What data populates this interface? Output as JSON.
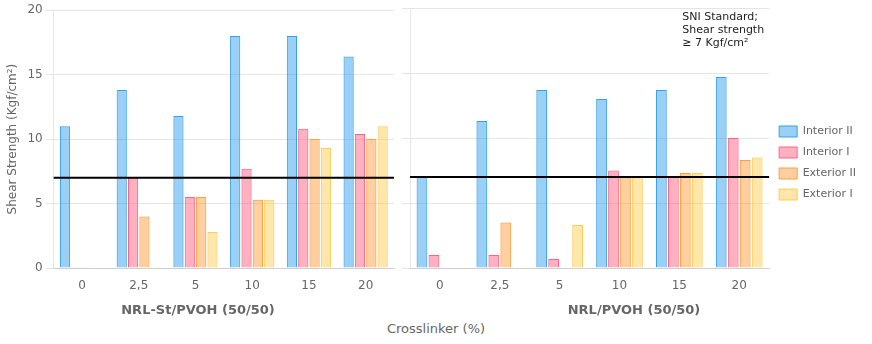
{
  "chart_data": [
    {
      "type": "bar",
      "title": "NRL-St/PVOH (50/50)",
      "xlabel": "Crosslinker (%)",
      "ylabel": "Shear Strength (Kgf/cm²)",
      "categories": [
        "0",
        "2,5",
        "5",
        "10",
        "15",
        "20"
      ],
      "series": [
        {
          "name": "Interior II",
          "values": [
            11.0,
            13.8,
            11.8,
            18.0,
            18.0,
            16.4
          ]
        },
        {
          "name": "Interior I",
          "values": [
            0.05,
            7.0,
            5.5,
            7.7,
            10.8,
            10.4
          ]
        },
        {
          "name": "Exterior II",
          "values": [
            0.05,
            4.0,
            5.5,
            5.3,
            10.0,
            10.0
          ]
        },
        {
          "name": "Exterior I",
          "values": [
            0.0,
            0.05,
            2.8,
            5.3,
            9.3,
            11.0
          ]
        }
      ],
      "hline": 7,
      "ylim": [
        0,
        20
      ],
      "yticks": [
        0,
        5,
        10,
        15,
        20
      ],
      "grid": true
    },
    {
      "type": "bar",
      "title": "NRL/PVOH (50/50)",
      "categories": [
        "0",
        "2,5",
        "5",
        "10",
        "15",
        "20"
      ],
      "series": [
        {
          "name": "Interior II",
          "values": [
            7.0,
            11.3,
            13.7,
            13.0,
            13.7,
            14.7
          ]
        },
        {
          "name": "Interior I",
          "values": [
            1.0,
            1.0,
            0.7,
            7.5,
            7.0,
            10.0
          ]
        },
        {
          "name": "Exterior II",
          "values": [
            0.0,
            3.5,
            0.0,
            7.0,
            7.3,
            8.3
          ]
        },
        {
          "name": "Exterior I",
          "values": [
            0.0,
            0.05,
            3.3,
            7.0,
            7.3,
            8.5
          ]
        }
      ],
      "hline": 7,
      "annotation": "SNI Standard;\nShear strength\n≥ 7 Kgf/cm²",
      "ylim": [
        0,
        20
      ],
      "yticks": [
        0,
        5,
        10,
        15,
        20
      ],
      "grid": true,
      "tick_labels": "x",
      "legend": "right"
    }
  ]
}
